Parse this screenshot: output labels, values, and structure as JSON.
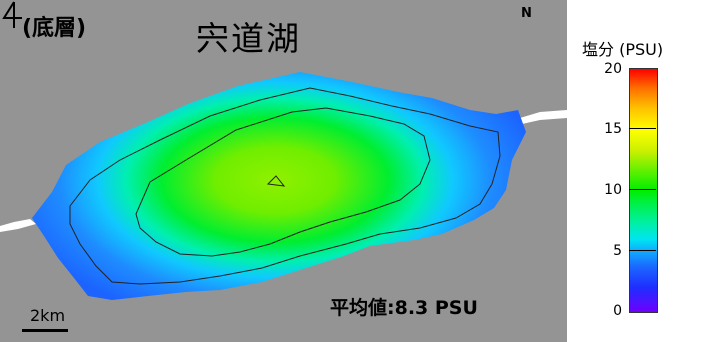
{
  "map": {
    "layer_label": "(底層)",
    "lake_name": "宍道湖",
    "north_label": "N",
    "mean_value": "平均値:8.3 PSU",
    "scale_label": "2km"
  },
  "legend": {
    "title": "塩分 (PSU)",
    "min": 0,
    "max": 20,
    "ticks": [
      "20",
      "15",
      "10",
      "5",
      "0"
    ],
    "colors": {
      "low": "#6f00ff",
      "blue": "#1c63ff",
      "cyan": "#00e5f0",
      "green": "#00ee00",
      "yellow": "#ffff00",
      "high": "#ff0000"
    }
  },
  "map_colors": {
    "land": "#949494",
    "river": "#ffffff",
    "contour": "#222222"
  },
  "icons": [
    "north-arrow-icon"
  ]
}
